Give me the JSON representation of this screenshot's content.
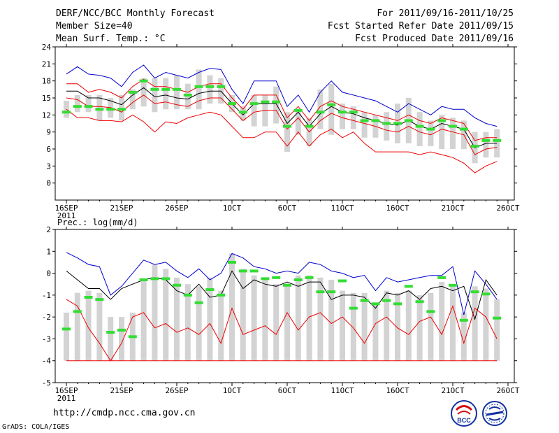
{
  "header": {
    "title": "DERF/NCC/BCC Monthly Forecast",
    "member_size": "Member Size=40",
    "variable": "Mean Surf. Temp.: °C",
    "period": "For 2011/09/16-2011/10/25",
    "started": "Fcst Started Refer Date 2011/09/15",
    "produced": "Fcst Produced Date 2011/09/16"
  },
  "footer": {
    "url": "http://cmdp.ncc.cma.gov.cn",
    "credit": "GrADS: COLA/IGES",
    "logo_text": "BCC"
  },
  "colors": {
    "upper": "#0000cc",
    "lower": "#ee0000",
    "center": "#000000",
    "box": "#d3d3d3",
    "mark": "#33dd33"
  },
  "chart_data": [
    {
      "type": "line",
      "title": "Mean Surf. Temp.: °C",
      "x_ticks": [
        "16SEP",
        "21SEP",
        "26SEP",
        "1OCT",
        "6OCT",
        "11OCT",
        "16OCT",
        "21OCT",
        "26OCT"
      ],
      "x_sub": "2011",
      "ylim": [
        -3,
        24
      ],
      "y_ticks": [
        0,
        3,
        6,
        9,
        12,
        15,
        18,
        21,
        24
      ],
      "ylabel": "",
      "dates": [
        "09-16",
        "09-17",
        "09-18",
        "09-19",
        "09-20",
        "09-21",
        "09-22",
        "09-23",
        "09-24",
        "09-25",
        "09-26",
        "09-27",
        "09-28",
        "09-29",
        "09-30",
        "10-01",
        "10-02",
        "10-03",
        "10-04",
        "10-05",
        "10-06",
        "10-07",
        "10-08",
        "10-09",
        "10-10",
        "10-11",
        "10-12",
        "10-13",
        "10-14",
        "10-15",
        "10-16",
        "10-17",
        "10-18",
        "10-19",
        "10-20",
        "10-21",
        "10-22",
        "10-23",
        "10-24",
        "10-25"
      ],
      "series": [
        {
          "name": "upper",
          "values": [
            19.2,
            20.5,
            19.2,
            19.0,
            18.5,
            17.0,
            19.5,
            20.8,
            18.5,
            19.5,
            19.0,
            18.5,
            19.5,
            20.2,
            20.0,
            16.5,
            14.0,
            18.0,
            18.0,
            18.0,
            13.5,
            15.5,
            12.5,
            16.0,
            18.0,
            16.0,
            15.5,
            15.0,
            14.5,
            13.5,
            12.5,
            14.0,
            13.0,
            12.0,
            13.5,
            13.0,
            13.0,
            11.5,
            10.5,
            10.0
          ]
        },
        {
          "name": "upper-mid",
          "values": [
            17.5,
            17.5,
            16.0,
            16.5,
            16.0,
            15.0,
            17.0,
            18.3,
            17.0,
            17.0,
            16.5,
            16.0,
            17.0,
            17.5,
            17.5,
            15.0,
            13.0,
            15.5,
            15.5,
            15.5,
            11.5,
            13.5,
            11.0,
            13.5,
            14.5,
            13.5,
            13.0,
            12.5,
            12.0,
            11.5,
            11.0,
            12.0,
            11.0,
            10.5,
            11.5,
            11.0,
            10.5,
            7.5,
            8.0,
            8.0
          ]
        },
        {
          "name": "median",
          "values": [
            16.2,
            16.2,
            15.0,
            15.0,
            14.5,
            13.8,
            15.5,
            16.8,
            15.2,
            15.5,
            15.0,
            14.8,
            15.8,
            16.2,
            16.2,
            14.0,
            12.0,
            14.0,
            14.0,
            14.0,
            10.5,
            12.5,
            10.0,
            12.2,
            13.5,
            12.5,
            12.2,
            11.5,
            11.0,
            10.5,
            10.2,
            11.0,
            10.0,
            9.5,
            10.5,
            10.0,
            9.5,
            6.2,
            7.0,
            7.0
          ]
        },
        {
          "name": "lower-mid",
          "values": [
            15.0,
            14.7,
            13.5,
            13.5,
            13.3,
            12.5,
            14.2,
            15.5,
            14.0,
            14.3,
            13.8,
            13.5,
            14.5,
            15.0,
            15.0,
            13.0,
            11.0,
            12.5,
            12.8,
            12.8,
            9.5,
            11.5,
            9.0,
            11.0,
            12.3,
            11.5,
            11.0,
            10.5,
            10.0,
            9.3,
            9.0,
            10.0,
            9.0,
            8.5,
            9.5,
            9.0,
            8.5,
            5.0,
            6.0,
            6.3
          ]
        },
        {
          "name": "lower",
          "values": [
            13.0,
            11.5,
            11.5,
            11.0,
            11.0,
            10.8,
            12.0,
            10.8,
            9.0,
            10.8,
            10.5,
            11.5,
            12.0,
            12.5,
            12.0,
            10.0,
            8.0,
            8.0,
            9.0,
            9.0,
            6.5,
            9.0,
            6.5,
            8.5,
            9.5,
            8.0,
            9.0,
            7.0,
            5.5,
            5.5,
            5.5,
            5.5,
            5.0,
            5.5,
            5.0,
            4.5,
            3.5,
            1.8,
            3.0,
            3.8
          ]
        }
      ],
      "ranges": [
        [
          11.5,
          14.5
        ],
        [
          12.5,
          15.5
        ],
        [
          12.5,
          15.5
        ],
        [
          11.0,
          15.5
        ],
        [
          11.5,
          15.0
        ],
        [
          11.0,
          15.5
        ],
        [
          13.0,
          16.5
        ],
        [
          13.5,
          18.5
        ],
        [
          12.5,
          18.5
        ],
        [
          13.0,
          18.5
        ],
        [
          13.0,
          19.0
        ],
        [
          13.0,
          17.5
        ],
        [
          13.0,
          20.0
        ],
        [
          14.0,
          19.0
        ],
        [
          14.0,
          18.5
        ],
        [
          12.5,
          15.5
        ],
        [
          11.0,
          13.5
        ],
        [
          10.0,
          15.5
        ],
        [
          10.0,
          15.5
        ],
        [
          10.5,
          17.0
        ],
        [
          5.5,
          12.5
        ],
        [
          8.5,
          13.0
        ],
        [
          6.5,
          11.5
        ],
        [
          9.5,
          16.5
        ],
        [
          8.5,
          17.5
        ],
        [
          9.5,
          14.0
        ],
        [
          9.5,
          13.5
        ],
        [
          8.0,
          12.5
        ],
        [
          8.0,
          12.0
        ],
        [
          7.5,
          12.5
        ],
        [
          7.0,
          14.0
        ],
        [
          7.0,
          15.0
        ],
        [
          6.5,
          12.5
        ],
        [
          6.5,
          11.0
        ],
        [
          6.0,
          12.0
        ],
        [
          6.0,
          11.5
        ],
        [
          6.0,
          11.0
        ],
        [
          3.5,
          9.0
        ],
        [
          4.5,
          9.0
        ],
        [
          4.5,
          9.5
        ]
      ],
      "observed": [
        12.5,
        13.5,
        13.5,
        13.0,
        13.0,
        13.0,
        16.0,
        18.0,
        16.5,
        16.5,
        16.5,
        15.5,
        17.0,
        17.0,
        17.0,
        14.0,
        12.5,
        14.0,
        14.3,
        14.3,
        10.0,
        12.8,
        10.0,
        12.5,
        13.8,
        12.5,
        12.5,
        11.0,
        11.0,
        10.5,
        10.5,
        11.0,
        10.0,
        9.5,
        11.0,
        10.0,
        9.5,
        6.5,
        7.5,
        7.5
      ]
    },
    {
      "type": "line",
      "title": "Prec.: log(mm/d)",
      "x_ticks": [
        "16SEP",
        "21SEP",
        "26SEP",
        "1OCT",
        "6OCT",
        "11OCT",
        "16OCT",
        "21OCT",
        "26OCT"
      ],
      "x_sub": "2011",
      "ylim": [
        -5,
        2
      ],
      "y_ticks": [
        -5,
        -4,
        -3,
        -2,
        -1,
        0,
        1,
        2
      ],
      "ylabel": "",
      "dates": [
        "09-16",
        "09-17",
        "09-18",
        "09-19",
        "09-20",
        "09-21",
        "09-22",
        "09-23",
        "09-24",
        "09-25",
        "09-26",
        "09-27",
        "09-28",
        "09-29",
        "09-30",
        "10-01",
        "10-02",
        "10-03",
        "10-04",
        "10-05",
        "10-06",
        "10-07",
        "10-08",
        "10-09",
        "10-10",
        "10-11",
        "10-12",
        "10-13",
        "10-14",
        "10-15",
        "10-16",
        "10-17",
        "10-18",
        "10-19",
        "10-20",
        "10-21",
        "10-22",
        "10-23",
        "10-24",
        "10-25"
      ],
      "series": [
        {
          "name": "upper",
          "values": [
            0.95,
            0.7,
            0.4,
            0.3,
            -1.0,
            -0.6,
            0.0,
            0.6,
            0.4,
            0.5,
            0.1,
            -0.2,
            0.2,
            -0.3,
            0.0,
            0.9,
            0.7,
            0.3,
            0.2,
            0.0,
            0.1,
            0.0,
            0.5,
            0.4,
            0.1,
            0.0,
            -0.2,
            -0.1,
            -0.8,
            -0.2,
            -0.4,
            -0.3,
            -0.2,
            -0.1,
            -0.1,
            0.3,
            -1.9,
            0.1,
            -0.5,
            -1.2
          ]
        },
        {
          "name": "median",
          "values": [
            0.1,
            -0.3,
            -0.7,
            -0.7,
            -1.2,
            -0.7,
            -0.5,
            -0.3,
            -0.2,
            -0.3,
            -0.8,
            -1.0,
            -0.5,
            -1.1,
            -1.0,
            0.1,
            -0.7,
            -0.3,
            -0.5,
            -0.6,
            -0.4,
            -0.6,
            -0.4,
            -0.4,
            -1.2,
            -1.0,
            -1.0,
            -1.1,
            -1.6,
            -0.9,
            -1.0,
            -0.8,
            -1.2,
            -0.7,
            -0.6,
            -0.8,
            -0.6,
            -2.1,
            -0.3,
            -1.0
          ]
        },
        {
          "name": "lower",
          "values": [
            -1.2,
            -1.5,
            -2.5,
            -3.2,
            -4.0,
            -3.2,
            -2.0,
            -1.8,
            -2.5,
            -2.3,
            -2.7,
            -2.5,
            -2.8,
            -2.3,
            -3.2,
            -1.6,
            -2.8,
            -2.6,
            -2.4,
            -2.8,
            -1.8,
            -2.6,
            -2.0,
            -1.8,
            -2.3,
            -2.0,
            -2.5,
            -3.2,
            -2.3,
            -2.0,
            -2.5,
            -2.8,
            -2.2,
            -2.0,
            -2.8,
            -1.5,
            -3.2,
            -1.6,
            -2.0,
            -3.0
          ]
        },
        {
          "name": "floor",
          "values": [
            -4,
            -4,
            -4,
            -4,
            -4,
            -4,
            -4,
            -4,
            -4,
            -4,
            -4,
            -4,
            -4,
            -4,
            -4,
            -4,
            -4,
            -4,
            -4,
            -4,
            -4,
            -4,
            -4,
            -4,
            -4,
            -4,
            -4,
            -4,
            -4,
            -4,
            -4,
            -4,
            -4,
            -4,
            -4,
            -4,
            -4,
            -4,
            -4,
            -4
          ]
        }
      ],
      "ranges": [
        [
          -4.0,
          -1.8
        ],
        [
          -4.0,
          -0.9
        ],
        [
          -4.0,
          -0.8
        ],
        [
          -4.0,
          -0.9
        ],
        [
          -4.0,
          -2.0
        ],
        [
          -4.0,
          -2.0
        ],
        [
          -4.0,
          -1.8
        ],
        [
          -4.0,
          -0.3
        ],
        [
          -4.0,
          0.4
        ],
        [
          -4.0,
          0.2
        ],
        [
          -4.0,
          -0.2
        ],
        [
          -4.0,
          -0.5
        ],
        [
          -4.0,
          -0.6
        ],
        [
          -4.0,
          -0.2
        ],
        [
          -4.0,
          -0.8
        ],
        [
          -4.0,
          0.9
        ],
        [
          -4.0,
          0.2
        ],
        [
          -4.0,
          -0.1
        ],
        [
          -4.0,
          -0.3
        ],
        [
          -4.0,
          -0.5
        ],
        [
          -4.0,
          -0.5
        ],
        [
          -4.0,
          -0.1
        ],
        [
          -4.0,
          -0.1
        ],
        [
          -4.0,
          -0.2
        ],
        [
          -4.0,
          -0.3
        ],
        [
          -4.0,
          -0.8
        ],
        [
          -4.0,
          -0.9
        ],
        [
          -4.0,
          -0.9
        ],
        [
          -4.0,
          -1.4
        ],
        [
          -4.0,
          -0.8
        ],
        [
          -4.0,
          -0.9
        ],
        [
          -4.0,
          -0.8
        ],
        [
          -4.0,
          -1.0
        ],
        [
          -4.0,
          -0.9
        ],
        [
          -4.0,
          -0.4
        ],
        [
          -4.0,
          -0.6
        ],
        [
          -4.0,
          -1.8
        ],
        [
          -4.0,
          -0.6
        ],
        [
          -4.0,
          -0.7
        ],
        [
          -4.0,
          -1.2
        ]
      ],
      "observed": [
        -2.55,
        -1.75,
        -1.1,
        -1.2,
        -2.7,
        -2.6,
        -2.9,
        -0.3,
        -0.25,
        -0.25,
        -0.55,
        -1.0,
        -1.35,
        -0.75,
        -1.0,
        0.5,
        0.1,
        0.1,
        -0.25,
        -0.2,
        -0.55,
        -0.3,
        -0.2,
        -0.85,
        -0.85,
        -0.35,
        -1.6,
        -1.25,
        -1.4,
        -1.25,
        -1.4,
        -0.6,
        -1.3,
        -1.75,
        -0.2,
        -0.55,
        -2.15,
        -0.85,
        -0.95,
        -2.05
      ]
    }
  ]
}
